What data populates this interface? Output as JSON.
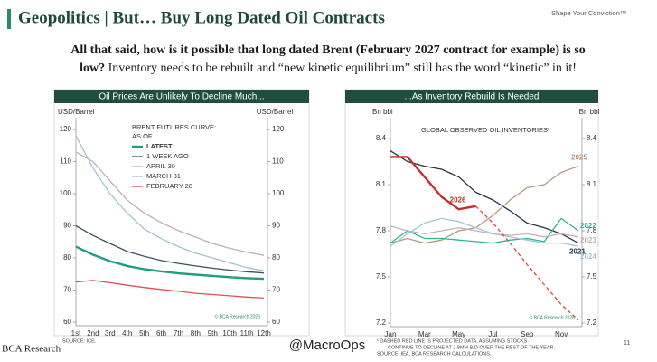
{
  "header": {
    "title": "Geopolitics | But… Buy Long Dated Oil Contracts",
    "tagline": "Shape Your Conviction™"
  },
  "subheading": {
    "bold_1": "All that said, how is it possible that long dated Brent (February 2027 contract for example) is so",
    "bold_2": "low?",
    "normal": " Inventory needs to be rebuilt and “new kinetic equilibrium” still has the word “kinetic” in it!"
  },
  "footer": {
    "logo": "BCΑ Research",
    "watermark": "@MacroOps",
    "page": "11"
  },
  "chart_data": [
    {
      "type": "line",
      "title": "Oil Prices Are Unlikely To Decline Much...",
      "y_label_left": "USD/Barrel",
      "y_label_right": "USD/Barrel",
      "legend_title": [
        "BRENT FUTURES CURVE:",
        "AS OF"
      ],
      "legend": "upper right",
      "credit": "© BCA Research 2026",
      "notes": [
        "SOURCE: ICE."
      ],
      "categories": [
        "1st",
        "2nd",
        "3rd",
        "4th",
        "5th",
        "6th",
        "7th",
        "8th",
        "9th",
        "10th",
        "11th",
        "12th"
      ],
      "ylim": [
        60,
        122
      ],
      "yticks": [
        60,
        70,
        80,
        90,
        100,
        110,
        120
      ],
      "series": [
        {
          "name": "LATEST",
          "color": "#1f9e7f",
          "values": [
            83.5,
            81,
            79,
            77.5,
            76.5,
            75.8,
            75.2,
            74.8,
            74.4,
            74,
            73.7,
            73.5
          ]
        },
        {
          "name": "1 WEEK AGO",
          "color": "#3e4f63",
          "values": [
            90,
            87,
            84.5,
            82,
            80.5,
            79.2,
            78.3,
            77.5,
            76.8,
            76.2,
            75.7,
            75.3
          ]
        },
        {
          "name": "APRIL 30",
          "color": "#c3afb3",
          "values": [
            113,
            110,
            104,
            98,
            94,
            91,
            88.5,
            86.5,
            84.5,
            83,
            81.8,
            80.8
          ]
        },
        {
          "name": "MARCH 31",
          "color": "#9fc3d6",
          "values": [
            118,
            108,
            100,
            94,
            89,
            86,
            83.5,
            81.5,
            80,
            78.5,
            77,
            76
          ]
        },
        {
          "name": "FEBRUARY 28",
          "color": "#d9534f",
          "values": [
            72.5,
            73,
            72.3,
            71.5,
            70.8,
            70.2,
            69.6,
            69,
            68.6,
            68.2,
            67.8,
            67.5
          ]
        }
      ]
    },
    {
      "type": "line",
      "title": "...As Inventory Rebuild Is Needed",
      "y_label_left": "Bn bbl",
      "y_label_right": "Bn bbl",
      "inner_title": "GLOBAL OBSERVED OIL INVENTORIES¹",
      "credit": "© BCA Research 2026",
      "notes": [
        "¹ DASHED RED LINE IS PROJECTED DATA, ASSUMING STOCKS",
        "CONTINUE TO DECLINE AT 3.8MM B/D OVER THE REST OF THE YEAR.",
        "SOURCE: IEA, BCA RESEARCH CALCULATIONS."
      ],
      "categories": [
        "Jan",
        null,
        "Mar",
        null,
        "May",
        null,
        "Jul",
        null,
        "Sep",
        null,
        "Nov",
        null
      ],
      "ylim": [
        7.2,
        8.5
      ],
      "yticks": [
        7.2,
        7.5,
        7.8,
        8.1,
        8.4
      ],
      "series": [
        {
          "name": "2021",
          "color": "#26354a",
          "values": [
            8.32,
            8.25,
            8.22,
            8.2,
            8.15,
            8.05,
            8.0,
            7.93,
            7.85,
            7.82,
            7.78,
            7.72
          ]
        },
        {
          "name": "2025",
          "color": "#b8967c",
          "values": [
            7.72,
            7.75,
            7.72,
            7.74,
            7.8,
            7.82,
            7.9,
            8.0,
            8.08,
            8.1,
            8.18,
            8.22
          ]
        },
        {
          "name": "2022",
          "color": "#2bb596",
          "values": [
            7.72,
            7.8,
            7.75,
            7.75,
            7.74,
            7.73,
            7.72,
            7.74,
            7.75,
            7.73,
            7.88,
            7.8
          ]
        },
        {
          "name": "2023",
          "color": "#c7b1b5",
          "values": [
            7.83,
            7.8,
            7.78,
            7.8,
            7.82,
            7.8,
            7.78,
            7.77,
            7.78,
            7.76,
            7.78,
            7.76
          ]
        },
        {
          "name": "2024",
          "color": "#a3c6d8",
          "values": [
            7.7,
            7.78,
            7.85,
            7.88,
            7.86,
            7.82,
            7.78,
            7.76,
            7.74,
            7.72,
            7.72,
            7.7
          ]
        },
        {
          "name": "2026",
          "color": "#c62f2f",
          "values": [
            8.28,
            8.28,
            8.15,
            8.02,
            7.94,
            7.96,
            null,
            null,
            null,
            null,
            null,
            null
          ]
        },
        {
          "color": "#e0463f",
          "dashed": true,
          "values": [
            null,
            null,
            null,
            null,
            null,
            7.96,
            7.85,
            7.72,
            7.58,
            7.45,
            7.32,
            7.22
          ]
        }
      ]
    }
  ]
}
